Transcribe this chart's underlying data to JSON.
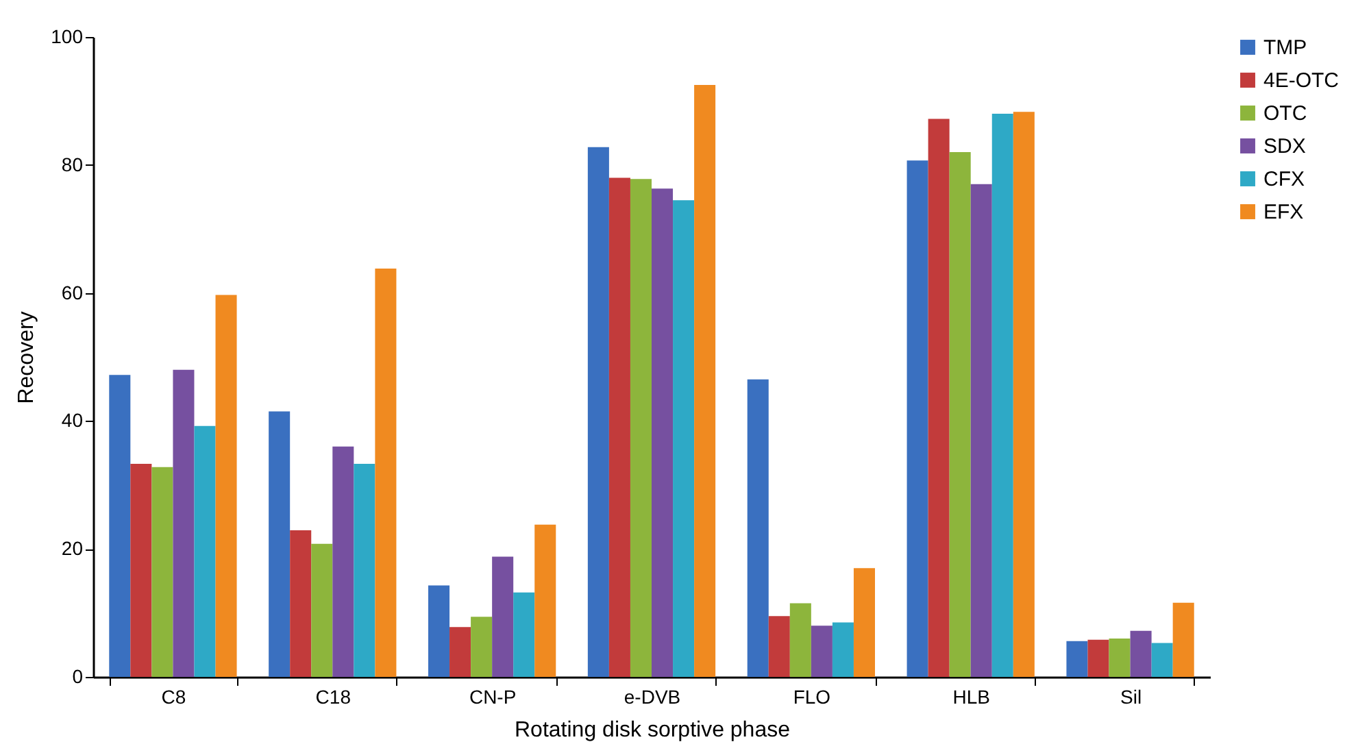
{
  "chart_data": {
    "type": "bar",
    "xlabel": "Rotating disk sorptive phase",
    "ylabel": "Recovery",
    "categories": [
      "C8",
      "C18",
      "CN-P",
      "e-DVB",
      "FLO",
      "HLB",
      "Sil"
    ],
    "series": [
      {
        "name": "TMP",
        "color": "#3a70c0",
        "values": [
          47.2,
          41.5,
          14.3,
          82.8,
          46.5,
          80.7,
          5.6
        ]
      },
      {
        "name": "4E-OTC",
        "color": "#c23b3b",
        "values": [
          33.3,
          22.9,
          7.8,
          78,
          9.5,
          87.2,
          5.8
        ]
      },
      {
        "name": "OTC",
        "color": "#8db53c",
        "values": [
          32.8,
          20.8,
          9.4,
          77.8,
          11.5,
          82,
          6
        ]
      },
      {
        "name": "SDX",
        "color": "#7650a0",
        "values": [
          48,
          36,
          18.8,
          76.3,
          8,
          77,
          7.2
        ]
      },
      {
        "name": "CFX",
        "color": "#2ea9c6",
        "values": [
          39.2,
          33.3,
          13.2,
          74.5,
          8.5,
          88,
          5.3
        ]
      },
      {
        "name": "EFX",
        "color": "#f08a20",
        "values": [
          59.7,
          63.8,
          23.8,
          92.5,
          17,
          88.3,
          11.6
        ]
      }
    ],
    "ylim": [
      0,
      100
    ],
    "yticks": [
      0,
      20,
      40,
      60,
      80,
      100
    ],
    "legend": "right",
    "grid": false
  }
}
